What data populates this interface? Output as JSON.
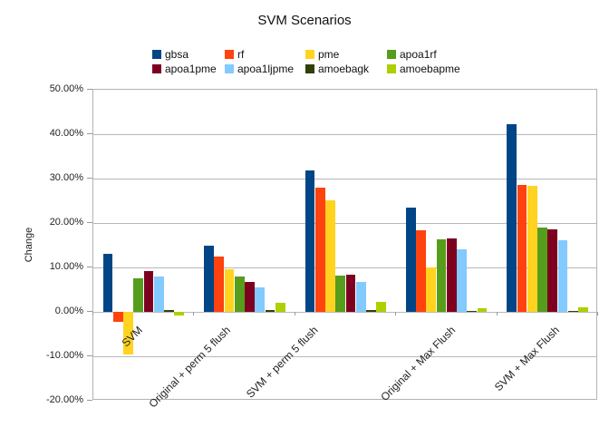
{
  "chart_data": {
    "type": "bar",
    "title": "SVM Scenarios",
    "ylabel": "Change",
    "xlabel": "",
    "grid": true,
    "legend_position": "top",
    "ylim": [
      -20,
      50
    ],
    "ytick_step": 10,
    "ytick_labels": [
      "50.00%",
      "40.00%",
      "30.00%",
      "20.00%",
      "10.00%",
      "0.00%",
      "-10.00%",
      "-20.00%"
    ],
    "categories": [
      "SVM",
      "Original + perm 5 flush",
      "SVM + perm 5 flush",
      "Original + Max Flush",
      "SVM + Max Flush"
    ],
    "series": [
      {
        "name": "gbsa",
        "color": "#004586",
        "values": [
          13.0,
          15.0,
          31.9,
          23.4,
          42.3
        ]
      },
      {
        "name": "rf",
        "color": "#ff420e",
        "values": [
          -2.2,
          12.5,
          28.0,
          18.4,
          28.6
        ]
      },
      {
        "name": "pme",
        "color": "#ffd320",
        "values": [
          -9.6,
          9.6,
          25.2,
          9.9,
          28.3
        ]
      },
      {
        "name": "apoa1rf",
        "color": "#579d1c",
        "values": [
          7.5,
          7.9,
          8.1,
          16.3,
          19.0
        ]
      },
      {
        "name": "apoa1pme",
        "color": "#7e0021",
        "values": [
          9.1,
          6.8,
          8.3,
          16.5,
          18.6
        ]
      },
      {
        "name": "apoa1ljpme",
        "color": "#83caff",
        "values": [
          8.0,
          5.5,
          6.8,
          14.0,
          16.1
        ]
      },
      {
        "name": "amoebagk",
        "color": "#314004",
        "values": [
          0.5,
          0.5,
          0.4,
          0.3,
          0.2
        ]
      },
      {
        "name": "amoebapme",
        "color": "#aecf00",
        "values": [
          -0.8,
          2.0,
          2.3,
          0.8,
          1.1
        ]
      }
    ]
  }
}
